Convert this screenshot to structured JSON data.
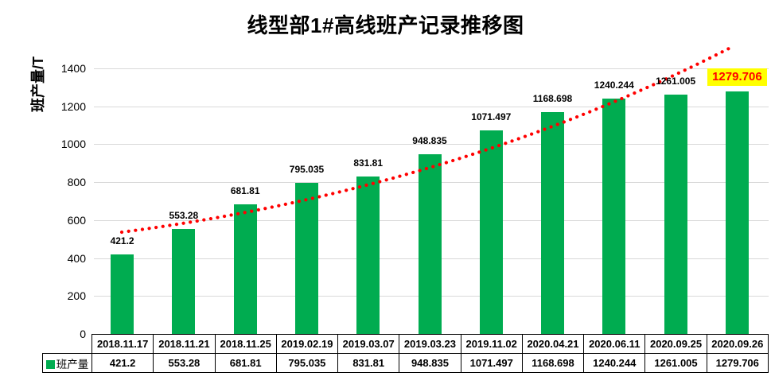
{
  "title": "线型部1#高线班产记录推移图",
  "y_axis": {
    "label": "班产量/T",
    "ticks": [
      1400,
      1200,
      1000,
      800,
      600,
      400,
      200,
      0
    ]
  },
  "legend": {
    "label": "班产量"
  },
  "colors": {
    "bar": "#00AC50",
    "trendline": "#FF0000",
    "gridline": "#d9d9d9",
    "highlight_bg": "#FFFF00",
    "highlight_text": "#FF0000"
  },
  "chart_data": {
    "type": "bar",
    "title": "线型部1#高线班产记录推移图",
    "xlabel": "",
    "ylabel": "班产量/T",
    "categories": [
      "2018.11.17",
      "2018.11.21",
      "2018.11.25",
      "2019.02.19",
      "2019.03.07",
      "2019.03.23",
      "2019.11.02",
      "2020.04.21",
      "2020.06.11",
      "2020.09.25",
      "2020.09.26"
    ],
    "series": [
      {
        "name": "班产量",
        "values": [
          421.2,
          553.28,
          681.81,
          795.035,
          831.81,
          948.835,
          1071.497,
          1168.698,
          1240.244,
          1261.005,
          1279.706
        ]
      }
    ],
    "value_labels": [
      "421.2",
      "553.28",
      "681.81",
      "795.035",
      "831.81",
      "948.835",
      "1071.497",
      "1168.698",
      "1240.244",
      "1261.005",
      "1279.706"
    ],
    "ylim": [
      0,
      1400
    ],
    "y_tick_step": 200,
    "grid": true,
    "legend_position": "bottom-left-table",
    "trendline": {
      "style": "dotted",
      "color": "#FF0000",
      "shape": "exponential"
    },
    "highlight": {
      "category": "2020.09.26",
      "label": "1279.706",
      "label_bg": "#FFFF00",
      "label_color": "#FF0000"
    },
    "data_table_shown": true
  }
}
